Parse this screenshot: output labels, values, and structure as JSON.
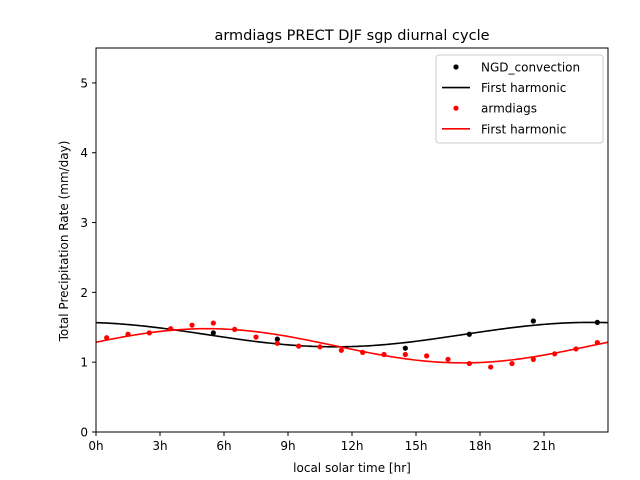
{
  "chart_data": {
    "type": "scatter",
    "title": "armdiags PRECT DJF sgp diurnal cycle",
    "xlabel": "local solar time [hr]",
    "ylabel": "Total Precipitation Rate (mm/day)",
    "xlim": [
      0,
      24
    ],
    "ylim": [
      0,
      5.5
    ],
    "xticks": [
      0,
      3,
      6,
      9,
      12,
      15,
      18,
      21
    ],
    "xtick_labels": [
      "0h",
      "3h",
      "6h",
      "9h",
      "12h",
      "15h",
      "18h",
      "21h"
    ],
    "yticks": [
      0,
      1,
      2,
      3,
      4,
      5
    ],
    "ytick_labels": [
      "0",
      "1",
      "2",
      "3",
      "4",
      "5"
    ],
    "grid": false,
    "legend_position": "top-right",
    "series": [
      {
        "name": "NGD_convection",
        "kind": "points",
        "color": "#000000",
        "x": [
          5.5,
          8.5,
          14.5,
          17.5,
          20.5,
          23.5
        ],
        "y": [
          1.42,
          1.33,
          1.2,
          1.4,
          1.59,
          1.57
        ]
      },
      {
        "name": "First harmonic",
        "kind": "harmonic",
        "color": "#000000",
        "mean": 1.395,
        "amplitude": 0.175,
        "phase_hr": 23.2
      },
      {
        "name": "armdiags",
        "kind": "points",
        "color": "#ff0000",
        "x": [
          0.5,
          1.5,
          2.5,
          3.5,
          4.5,
          5.5,
          6.5,
          7.5,
          8.5,
          9.5,
          10.5,
          11.5,
          12.5,
          13.5,
          14.5,
          15.5,
          16.5,
          17.5,
          18.5,
          19.5,
          20.5,
          21.5,
          22.5,
          23.5
        ],
        "y": [
          1.35,
          1.4,
          1.42,
          1.48,
          1.53,
          1.56,
          1.47,
          1.36,
          1.27,
          1.23,
          1.22,
          1.17,
          1.14,
          1.11,
          1.11,
          1.09,
          1.04,
          0.98,
          0.93,
          0.98,
          1.04,
          1.12,
          1.19,
          1.28
        ]
      },
      {
        "name": "First harmonic",
        "kind": "harmonic",
        "color": "#ff0000",
        "mean": 1.235,
        "amplitude": 0.245,
        "phase_hr": 5.2
      }
    ]
  }
}
